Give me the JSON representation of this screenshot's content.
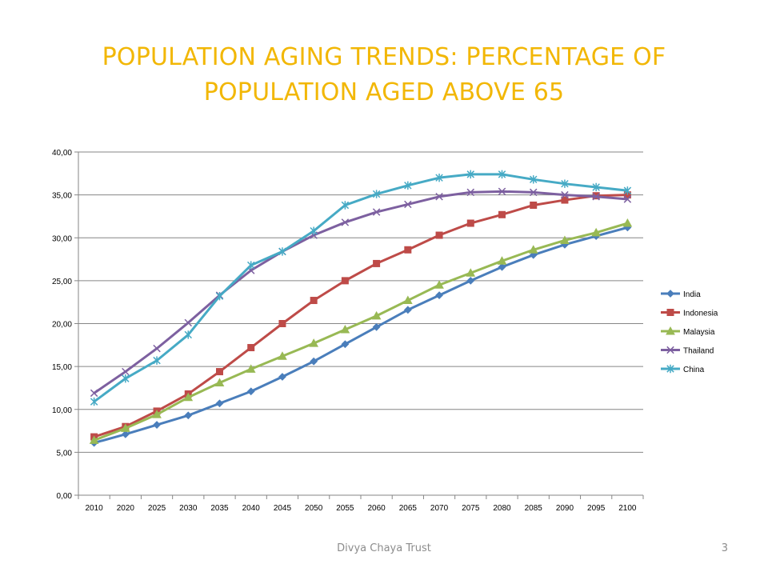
{
  "slide": {
    "title": "POPULATION AGING TRENDS: PERCENTAGE OF POPULATION AGED ABOVE 65",
    "footer": "Divya Chaya Trust",
    "page_number": "3",
    "title_color": "#f2b705"
  },
  "chart_data": {
    "type": "line",
    "title": "",
    "xlabel": "",
    "ylabel": "",
    "categories": [
      "2010",
      "2020",
      "2025",
      "2030",
      "2035",
      "2040",
      "2045",
      "2050",
      "2055",
      "2060",
      "2065",
      "2070",
      "2075",
      "2080",
      "2085",
      "2090",
      "2095",
      "2100"
    ],
    "ylim": [
      0,
      40
    ],
    "yticks": [
      "0,00",
      "5,00",
      "10,00",
      "15,00",
      "20,00",
      "25,00",
      "30,00",
      "35,00",
      "40,00"
    ],
    "grid": true,
    "legend_position": "right",
    "series": [
      {
        "name": "India",
        "color": "#4a7ebb",
        "marker": "diamond",
        "values": [
          6.1,
          7.1,
          8.2,
          9.3,
          10.7,
          12.1,
          13.8,
          15.6,
          17.6,
          19.6,
          21.6,
          23.3,
          25.0,
          26.6,
          28.0,
          29.2,
          30.2,
          31.2
        ]
      },
      {
        "name": "Indonesia",
        "color": "#be4b48",
        "marker": "square",
        "values": [
          6.8,
          8.0,
          9.8,
          11.8,
          14.4,
          17.2,
          20.0,
          22.7,
          25.0,
          27.0,
          28.6,
          30.3,
          31.7,
          32.7,
          33.8,
          34.4,
          34.9,
          35.0
        ]
      },
      {
        "name": "Malaysia",
        "color": "#98b954",
        "marker": "triangle",
        "values": [
          6.4,
          7.8,
          9.4,
          11.4,
          13.1,
          14.7,
          16.2,
          17.7,
          19.3,
          20.9,
          22.7,
          24.5,
          25.9,
          27.3,
          28.6,
          29.7,
          30.6,
          31.7
        ]
      },
      {
        "name": "Thailand",
        "color": "#7d60a0",
        "marker": "x",
        "values": [
          11.9,
          14.4,
          17.1,
          20.1,
          23.3,
          26.2,
          28.4,
          30.3,
          31.8,
          33.0,
          33.9,
          34.8,
          35.3,
          35.4,
          35.3,
          35.0,
          34.8,
          34.5
        ]
      },
      {
        "name": "China",
        "color": "#46aac5",
        "marker": "star",
        "values": [
          10.9,
          13.6,
          15.7,
          18.7,
          23.2,
          26.8,
          28.4,
          30.8,
          33.8,
          35.1,
          36.1,
          37.0,
          37.4,
          37.4,
          36.8,
          36.3,
          35.9,
          35.5
        ]
      }
    ]
  }
}
